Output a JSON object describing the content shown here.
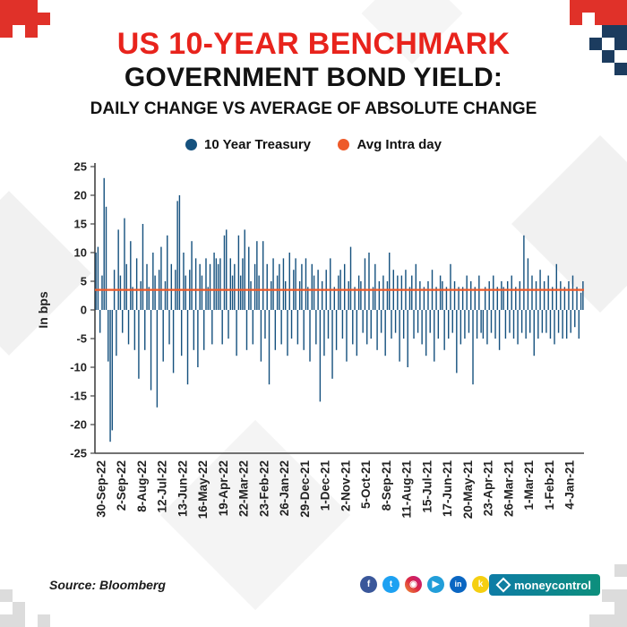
{
  "header": {
    "title_line1": "US 10-YEAR BENCHMARK",
    "title_line2": "GOVERNMENT BOND YIELD:",
    "title_line3": "DAILY CHANGE VS AVERAGE OF ABSOLUTE CHANGE"
  },
  "chart_data": {
    "type": "bar",
    "title": "US 10-YEAR BENCHMARK GOVERNMENT BOND YIELD: DAILY CHANGE VS AVERAGE OF ABSOLUTE CHANGE",
    "xlabel": "",
    "ylabel": "In bps",
    "ylim": [
      -25,
      25
    ],
    "yticks": [
      25,
      20,
      15,
      10,
      5,
      0,
      -5,
      -10,
      -15,
      -20,
      -25
    ],
    "grid": false,
    "legend_position": "top",
    "x_labels": [
      "30-Sep-22",
      "2-Sep-22",
      "8-Aug-22",
      "12-Jul-22",
      "13-Jun-22",
      "16-May-22",
      "19-Apr-22",
      "22-Mar-22",
      "23-Feb-22",
      "26-Jan-22",
      "29-Dec-21",
      "1-Dec-21",
      "2-Nov-21",
      "5-Oct-21",
      "8-Sep-21",
      "11-Aug-21",
      "15-Jul-21",
      "17-Jun-21",
      "20-May-21",
      "23-Apr-21",
      "26-Mar-21",
      "1-Mar-21",
      "1-Feb-21",
      "4-Jan-21"
    ],
    "series": [
      {
        "name": "10 Year Treasury",
        "type": "bar",
        "color": "#15517e",
        "values": [
          10,
          11,
          -4,
          6,
          23,
          18,
          -9,
          -23,
          -21,
          7,
          -8,
          14,
          6,
          -4,
          16,
          8,
          -6,
          12,
          4,
          -7,
          9,
          -12,
          5,
          15,
          -7,
          8,
          4,
          -14,
          10,
          6,
          -17,
          7,
          11,
          -9,
          5,
          13,
          -6,
          8,
          -11,
          7,
          19,
          20,
          -8,
          10,
          6,
          -13,
          7,
          12,
          -7,
          9,
          -10,
          8,
          6,
          -7,
          9,
          4,
          8,
          -6,
          10,
          9,
          8,
          9,
          -6,
          13,
          14,
          -5,
          9,
          6,
          8,
          -8,
          13,
          6,
          9,
          14,
          -7,
          11,
          5,
          -6,
          8,
          12,
          6,
          -9,
          12,
          -5,
          8,
          -13,
          5,
          9,
          -7,
          6,
          8,
          -6,
          9,
          5,
          -8,
          10,
          -5,
          7,
          9,
          -6,
          5,
          8,
          -7,
          9,
          4,
          -9,
          8,
          6,
          -6,
          7,
          -16,
          5,
          -8,
          7,
          -5,
          9,
          -12,
          4,
          -7,
          6,
          7,
          -5,
          8,
          -9,
          5,
          11,
          -6,
          4,
          -8,
          6,
          5,
          -4,
          9,
          -6,
          10,
          -5,
          4,
          8,
          -7,
          5,
          -4,
          6,
          -8,
          5,
          10,
          -5,
          7,
          -4,
          6,
          -9,
          6,
          -5,
          7,
          -10,
          4,
          6,
          -5,
          8,
          -4,
          5,
          -6,
          4,
          -8,
          5,
          -4,
          7,
          -9,
          4,
          -5,
          6,
          5,
          -7,
          4,
          -5,
          8,
          -4,
          5,
          -11,
          4,
          -6,
          4,
          -5,
          6,
          -4,
          5,
          -13,
          4,
          -5,
          6,
          -4,
          -5,
          4,
          -6,
          5,
          -4,
          6,
          -5,
          4,
          -7,
          5,
          4,
          -5,
          5,
          -4,
          6,
          -5,
          4,
          -6,
          5,
          -4,
          13,
          -5,
          9,
          -4,
          6,
          -8,
          5,
          -5,
          7,
          -4,
          5,
          -4,
          6,
          -5,
          4,
          -6,
          8,
          -4,
          5,
          -5,
          4,
          -5,
          5,
          -4,
          6,
          -3,
          4,
          -5,
          3,
          5
        ]
      },
      {
        "name": "Avg Intra day",
        "type": "line",
        "color": "#ee5a29",
        "value": 3.5
      }
    ]
  },
  "footer": {
    "source": "Source: Bloomberg",
    "logo_text": "moneycontrol",
    "social": [
      {
        "name": "facebook",
        "glyph": "f",
        "color": "#3a579a"
      },
      {
        "name": "twitter",
        "glyph": "t",
        "color": "#1da1f2"
      },
      {
        "name": "instagram",
        "glyph": "◉",
        "color": "linear-gradient(45deg,#f09433,#dc2743,#bc1888)"
      },
      {
        "name": "telegram",
        "glyph": "▶",
        "color": "#229ed9"
      },
      {
        "name": "linkedin",
        "glyph": "in",
        "color": "#0a66c2"
      },
      {
        "name": "koo",
        "glyph": "k",
        "color": "#f5cf11"
      }
    ]
  },
  "colors": {
    "title_red": "#e8231c",
    "bar_blue": "#15517e",
    "avg_orange": "#ee5a29",
    "axis_text": "#222222",
    "logo_teal_gradient": [
      "#0e7ca6",
      "#0d8f7c"
    ]
  }
}
